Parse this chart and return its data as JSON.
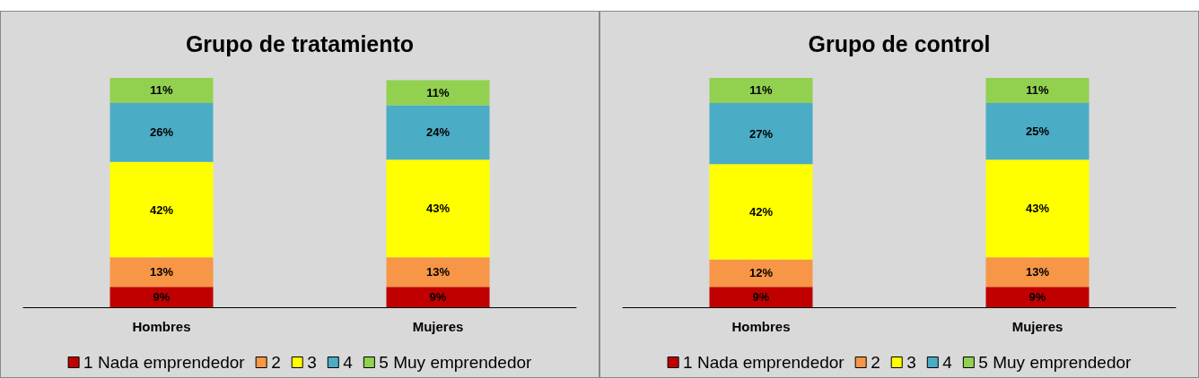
{
  "chart_data": [
    {
      "type": "bar",
      "title": "Grupo de tratamiento",
      "categories": [
        "Hombres",
        "Mujeres"
      ],
      "stacked": true,
      "legend": "bottom",
      "series": [
        {
          "name": "1 Nada emprendedor",
          "color": "#c00000",
          "values": [
            9,
            9
          ],
          "value_labels": [
            "9%",
            "9%"
          ]
        },
        {
          "name": "2",
          "color": "#f79646",
          "values": [
            13,
            13
          ],
          "value_labels": [
            "13%",
            "13%"
          ]
        },
        {
          "name": "3",
          "color": "#ffff00",
          "values": [
            42,
            43
          ],
          "value_labels": [
            "42%",
            "43%"
          ]
        },
        {
          "name": "4",
          "color": "#4bacc6",
          "values": [
            26,
            24
          ],
          "value_labels": [
            "26%",
            "24%"
          ]
        },
        {
          "name": "5 Muy emprendedor",
          "color": "#92d050",
          "values": [
            11,
            11
          ],
          "value_labels": [
            "11%",
            "11%"
          ]
        }
      ]
    },
    {
      "type": "bar",
      "title": "Grupo de control",
      "categories": [
        "Hombres",
        "Mujeres"
      ],
      "stacked": true,
      "legend": "bottom",
      "series": [
        {
          "name": "1 Nada emprendedor",
          "color": "#c00000",
          "values": [
            9,
            9
          ],
          "value_labels": [
            "9%",
            "9%"
          ]
        },
        {
          "name": "2",
          "color": "#f79646",
          "values": [
            12,
            13
          ],
          "value_labels": [
            "12%",
            "13%"
          ]
        },
        {
          "name": "3",
          "color": "#ffff00",
          "values": [
            42,
            43
          ],
          "value_labels": [
            "42%",
            "43%"
          ]
        },
        {
          "name": "4",
          "color": "#4bacc6",
          "values": [
            27,
            25
          ],
          "value_labels": [
            "27%",
            "25%"
          ]
        },
        {
          "name": "5 Muy emprendedor",
          "color": "#92d050",
          "values": [
            11,
            11
          ],
          "value_labels": [
            "11%",
            "11%"
          ]
        }
      ]
    }
  ]
}
